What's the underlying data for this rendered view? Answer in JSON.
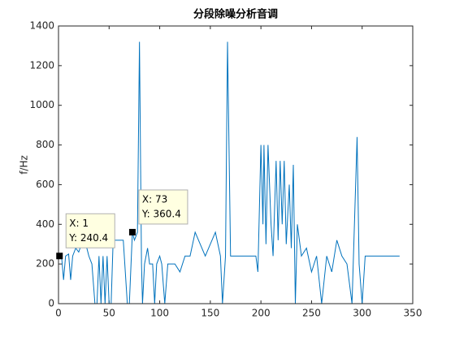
{
  "chart_data": {
    "type": "line",
    "title": "分段除噪分析音调",
    "y_label": "f/Hz",
    "xlim": [
      0,
      350
    ],
    "xticks": [
      0,
      50,
      100,
      150,
      200,
      250,
      300,
      350
    ],
    "ylim": [
      0,
      1400
    ],
    "yticks": [
      0,
      200,
      400,
      600,
      800,
      1000,
      1200,
      1400
    ],
    "grid": false,
    "series": [
      {
        "name": "f",
        "color": "#0072bd",
        "x": [
          1,
          3,
          5,
          7,
          10,
          12,
          14,
          17,
          20,
          24,
          28,
          30,
          33,
          36,
          38,
          40,
          42,
          44,
          46,
          48,
          50,
          52,
          54,
          56,
          60,
          64,
          68,
          70,
          72,
          73,
          75,
          78,
          80,
          82,
          83,
          85,
          88,
          90,
          93,
          95,
          97,
          100,
          102,
          105,
          108,
          112,
          115,
          120,
          125,
          130,
          135,
          140,
          145,
          150,
          155,
          160,
          162,
          165,
          167,
          170,
          175,
          185,
          195,
          197,
          200,
          202,
          203,
          205,
          207,
          210,
          212,
          215,
          217,
          219,
          221,
          223,
          225,
          228,
          230,
          232,
          234,
          236,
          240,
          245,
          250,
          255,
          260,
          265,
          270,
          275,
          280,
          285,
          290,
          295,
          297,
          300,
          303,
          320,
          337
        ],
        "values": [
          240.4,
          240,
          120,
          240,
          250,
          120,
          240,
          280,
          260,
          320,
          280,
          240,
          200,
          0,
          0,
          240,
          0,
          240,
          0,
          240,
          0,
          0,
          320,
          320,
          320,
          320,
          0,
          0,
          240,
          360.4,
          320,
          360,
          1320,
          200,
          0,
          200,
          280,
          200,
          200,
          0,
          200,
          240,
          200,
          0,
          200,
          200,
          200,
          160,
          240,
          240,
          360,
          300,
          240,
          300,
          360,
          240,
          0,
          240,
          1320,
          240,
          240,
          240,
          240,
          160,
          800,
          400,
          800,
          300,
          800,
          400,
          240,
          720,
          320,
          720,
          400,
          720,
          300,
          600,
          280,
          700,
          0,
          400,
          240,
          280,
          160,
          240,
          0,
          240,
          160,
          320,
          240,
          200,
          0,
          840,
          200,
          0,
          240,
          240,
          240
        ]
      }
    ],
    "annotations": [
      {
        "x": 1,
        "y": 240.4,
        "text": [
          "X: 1",
          "Y: 240.4"
        ]
      },
      {
        "x": 73,
        "y": 360.4,
        "text": [
          "X: 73",
          "Y: 360.4"
        ]
      }
    ]
  }
}
